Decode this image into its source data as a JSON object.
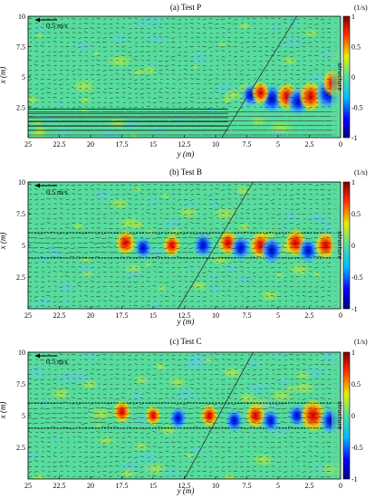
{
  "chart_data": [
    {
      "type": "heatmap",
      "title": "(a) Test P",
      "xlabel": "y (m)",
      "ylabel": "x (m)",
      "xlim": [
        25,
        0
      ],
      "ylim": [
        0,
        10
      ],
      "x_ticks": [
        "25",
        "22.5",
        "20",
        "17.5",
        "15",
        "12.5",
        "10",
        "7.5",
        "5",
        "2.5",
        "0"
      ],
      "y_ticks": [
        "2.5",
        "5",
        "7.5",
        "10"
      ],
      "colorbar": {
        "unit": "(1/s)",
        "min": -1,
        "max": 1,
        "ticks": [
          "1",
          "0.5",
          "0",
          "-0.5",
          "-1"
        ]
      },
      "structure_label": "structure",
      "reference_vector": "0.5 m/s",
      "jet_band": null,
      "vortices": [
        {
          "y": 5.5,
          "x": 3.2,
          "sign": -1,
          "strength": 0.9
        },
        {
          "y": 4.3,
          "x": 3.4,
          "sign": 1,
          "strength": 0.8
        },
        {
          "y": 3.4,
          "x": 3.0,
          "sign": -1,
          "strength": 0.85
        },
        {
          "y": 2.4,
          "x": 3.4,
          "sign": 1,
          "strength": 0.9
        },
        {
          "y": 1.0,
          "x": 3.6,
          "sign": -1,
          "strength": 1.0
        },
        {
          "y": 0.6,
          "x": 4.5,
          "sign": 1,
          "strength": 0.8
        },
        {
          "y": 7.2,
          "x": 3.5,
          "sign": -1,
          "strength": 0.6
        },
        {
          "y": 6.4,
          "x": 3.7,
          "sign": 1,
          "strength": 0.6
        }
      ],
      "diagonal": {
        "y0": 9.5,
        "x0": 0,
        "y1": 3.5,
        "x1": 10
      }
    },
    {
      "type": "heatmap",
      "title": "(b) Test B",
      "xlabel": "y (m)",
      "ylabel": "x (m)",
      "xlim": [
        25,
        0
      ],
      "ylim": [
        0,
        10
      ],
      "x_ticks": [
        "25",
        "22.5",
        "20",
        "17.5",
        "15",
        "12.5",
        "10",
        "7.5",
        "5",
        "2.5",
        "0"
      ],
      "y_ticks": [
        "2.5",
        "5",
        "7.5",
        "10"
      ],
      "colorbar": {
        "unit": "(1/s)",
        "min": -1,
        "max": 1,
        "ticks": [
          "1",
          "0.5",
          "0",
          "-0.5",
          "-1"
        ]
      },
      "structure_label": "structure",
      "reference_vector": "0.5 m/s",
      "jet_band": [
        4,
        6
      ],
      "vortices": [
        {
          "y": 17.2,
          "x": 5.2,
          "sign": 1,
          "strength": 0.7
        },
        {
          "y": 15.8,
          "x": 4.8,
          "sign": -1,
          "strength": 0.6
        },
        {
          "y": 13.5,
          "x": 5.0,
          "sign": 1,
          "strength": 0.6
        },
        {
          "y": 11.0,
          "x": 5.0,
          "sign": -1,
          "strength": 0.7
        },
        {
          "y": 9.0,
          "x": 5.2,
          "sign": 1,
          "strength": 0.7
        },
        {
          "y": 8.0,
          "x": 4.8,
          "sign": -1,
          "strength": 0.7
        },
        {
          "y": 6.4,
          "x": 5.0,
          "sign": 1,
          "strength": 0.8
        },
        {
          "y": 5.5,
          "x": 4.6,
          "sign": -1,
          "strength": 0.8
        },
        {
          "y": 3.6,
          "x": 5.2,
          "sign": 1,
          "strength": 0.8
        },
        {
          "y": 2.6,
          "x": 4.6,
          "sign": -1,
          "strength": 0.7
        },
        {
          "y": 1.2,
          "x": 5.0,
          "sign": 1,
          "strength": 0.8
        }
      ],
      "diagonal": {
        "y0": 13.0,
        "x0": 0,
        "y1": 7.0,
        "x1": 10
      }
    },
    {
      "type": "heatmap",
      "title": "(c) Test C",
      "xlabel": "y (m)",
      "ylabel": "x (m)",
      "xlim": [
        25,
        0
      ],
      "ylim": [
        0,
        10
      ],
      "x_ticks": [
        "25",
        "22.5",
        "20",
        "17.5",
        "15",
        "12.5",
        "10",
        "7.5",
        "5",
        "2.5",
        "0"
      ],
      "y_ticks": [
        "2.5",
        "5",
        "7.5",
        "10"
      ],
      "colorbar": {
        "unit": "(1/s)",
        "min": -1,
        "max": 1,
        "ticks": [
          "1",
          "0.5",
          "0",
          "-0.5",
          "-1"
        ]
      },
      "structure_label": "structure",
      "reference_vector": "0.5 m/s",
      "jet_band": [
        4,
        6
      ],
      "vortices": [
        {
          "y": 17.5,
          "x": 5.3,
          "sign": 1,
          "strength": 0.6
        },
        {
          "y": 15.0,
          "x": 5.0,
          "sign": 1,
          "strength": 0.5
        },
        {
          "y": 13.0,
          "x": 4.8,
          "sign": -1,
          "strength": 0.6
        },
        {
          "y": 10.5,
          "x": 5.0,
          "sign": 1,
          "strength": 0.6
        },
        {
          "y": 8.5,
          "x": 4.6,
          "sign": -1,
          "strength": 0.6
        },
        {
          "y": 6.8,
          "x": 5.0,
          "sign": 1,
          "strength": 0.7
        },
        {
          "y": 5.6,
          "x": 4.6,
          "sign": -1,
          "strength": 0.6
        },
        {
          "y": 3.5,
          "x": 5.0,
          "sign": -1,
          "strength": 0.6
        },
        {
          "y": 2.2,
          "x": 5.0,
          "sign": 1,
          "strength": 1.0
        },
        {
          "y": 0.8,
          "x": 4.6,
          "sign": -1,
          "strength": 0.8
        }
      ],
      "diagonal": {
        "y0": 12.5,
        "x0": 0,
        "y1": 7.0,
        "x1": 10
      }
    }
  ]
}
